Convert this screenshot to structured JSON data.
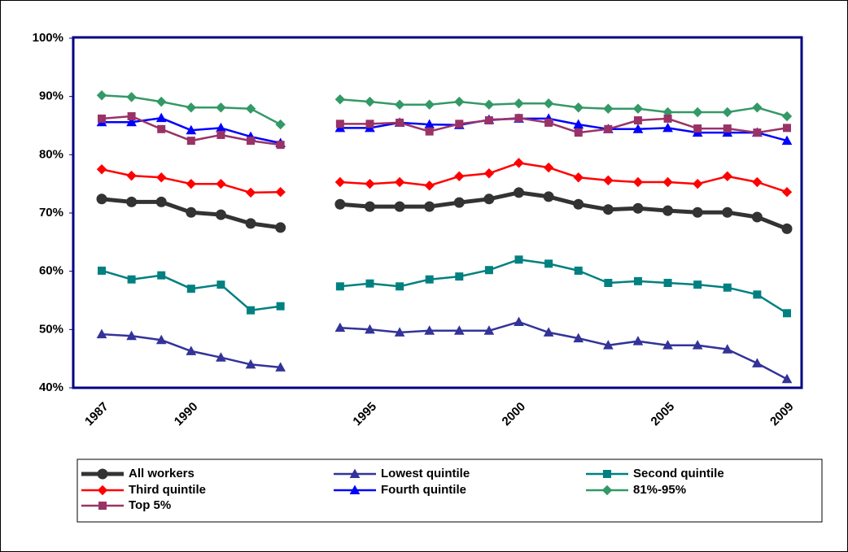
{
  "chart_data": {
    "type": "line",
    "categories": [
      "1987",
      null,
      null,
      "1990",
      null,
      null,
      null,
      null,
      null,
      "1995",
      null,
      null,
      null,
      null,
      "2000",
      null,
      null,
      null,
      null,
      "2005",
      null,
      null,
      null,
      "2009"
    ],
    "series": [
      {
        "name": "All workers",
        "color": "#333333",
        "marker": "circle",
        "values": [
          72.4,
          71.9,
          71.9,
          70.1,
          69.7,
          68.2,
          67.5,
          null,
          71.5,
          71.1,
          71.1,
          71.1,
          71.8,
          72.4,
          73.5,
          72.8,
          71.5,
          70.6,
          70.8,
          70.4,
          70.1,
          70.1,
          69.3,
          67.3
        ]
      },
      {
        "name": "Lowest quintile",
        "color": "#333399",
        "marker": "triangle",
        "values": [
          49.2,
          48.9,
          48.2,
          46.3,
          45.2,
          44.0,
          43.5,
          null,
          50.3,
          50.0,
          49.5,
          49.8,
          49.8,
          49.8,
          51.3,
          49.5,
          48.5,
          47.3,
          48.0,
          47.3,
          47.3,
          46.6,
          44.2,
          41.5
        ]
      },
      {
        "name": "Second quintile",
        "color": "#008080",
        "marker": "square",
        "values": [
          60.1,
          58.6,
          59.3,
          57.0,
          57.7,
          53.3,
          54.0,
          null,
          57.4,
          57.9,
          57.4,
          58.6,
          59.1,
          60.2,
          62.0,
          61.3,
          60.1,
          58.0,
          58.3,
          58.0,
          57.7,
          57.2,
          56.0,
          52.8
        ]
      },
      {
        "name": "Third quintile",
        "color": "#ff0000",
        "marker": "diamond",
        "values": [
          77.5,
          76.4,
          76.1,
          75.0,
          75.0,
          73.5,
          73.6,
          null,
          75.3,
          75.0,
          75.3,
          74.7,
          76.3,
          76.8,
          78.6,
          77.8,
          76.1,
          75.6,
          75.3,
          75.3,
          75.0,
          76.3,
          75.3,
          73.6
        ]
      },
      {
        "name": "Fourth quintile",
        "color": "#0000ff",
        "marker": "triangle",
        "values": [
          85.6,
          85.6,
          86.3,
          84.2,
          84.6,
          83.1,
          82.0,
          null,
          84.6,
          84.6,
          85.5,
          85.2,
          85.1,
          86.0,
          86.2,
          86.2,
          85.2,
          84.4,
          84.4,
          84.6,
          83.8,
          83.8,
          83.8,
          82.4
        ]
      },
      {
        "name": "81%-95%",
        "color": "#339966",
        "marker": "diamond",
        "values": [
          90.2,
          89.9,
          89.1,
          88.1,
          88.1,
          87.9,
          85.2,
          null,
          89.5,
          89.1,
          88.6,
          88.6,
          89.1,
          88.6,
          88.8,
          88.8,
          88.1,
          87.9,
          87.9,
          87.3,
          87.3,
          87.3,
          88.1,
          86.6
        ]
      },
      {
        "name": "Top 5%",
        "color": "#993366",
        "marker": "square",
        "values": [
          86.2,
          86.6,
          84.4,
          82.4,
          83.4,
          82.4,
          81.7,
          null,
          85.3,
          85.3,
          85.5,
          84.0,
          85.3,
          85.9,
          86.3,
          85.5,
          83.8,
          84.4,
          85.9,
          86.2,
          84.5,
          84.5,
          83.8,
          84.6
        ]
      }
    ],
    "ylim": [
      40,
      100
    ],
    "yticks": [
      {
        "value": 40,
        "label": "40%"
      },
      {
        "value": 50,
        "label": "50%"
      },
      {
        "value": 60,
        "label": "60%"
      },
      {
        "value": 70,
        "label": "70%"
      },
      {
        "value": 80,
        "label": "80%"
      },
      {
        "value": 90,
        "label": "90%"
      },
      {
        "value": 100,
        "label": "100%"
      }
    ],
    "grid": false
  }
}
